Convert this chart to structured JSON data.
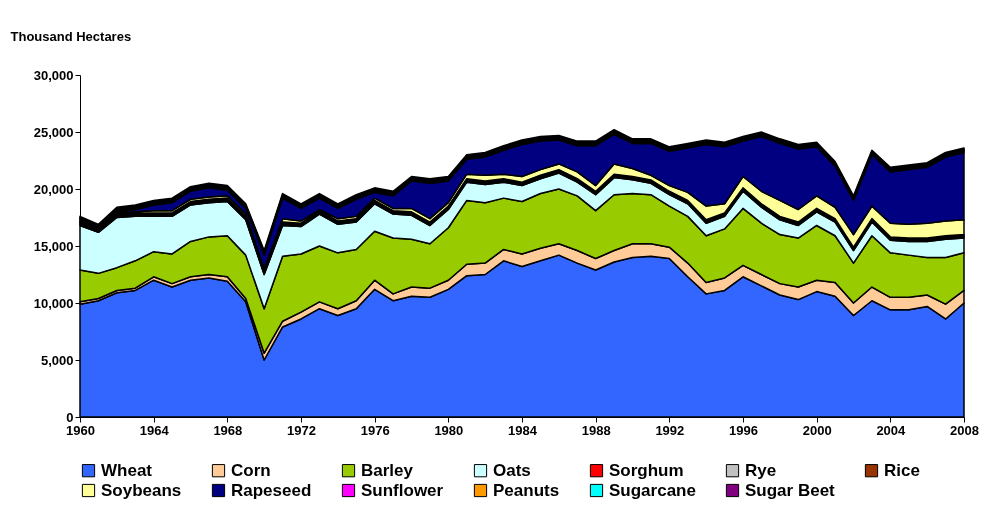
{
  "chart_data": {
    "type": "area",
    "stacked": true,
    "ylabel": "Thousand Hectares",
    "legend": "bottom",
    "grid": false,
    "xlim": [
      1960,
      2008
    ],
    "xticks": [
      1960,
      1964,
      1968,
      1972,
      1976,
      1980,
      1984,
      1988,
      1992,
      1996,
      2000,
      2004,
      2008
    ],
    "ylim": [
      0,
      30000
    ],
    "yticks": [
      {
        "value": 0,
        "label": "0"
      },
      {
        "value": 5000,
        "label": "5,000"
      },
      {
        "value": 10000,
        "label": "10,000"
      },
      {
        "value": 15000,
        "label": "15,000"
      },
      {
        "value": 20000,
        "label": "20,000"
      },
      {
        "value": 25000,
        "label": "25,000"
      },
      {
        "value": 30000,
        "label": "30,000"
      }
    ],
    "x": [
      1960,
      1961,
      1962,
      1963,
      1964,
      1965,
      1966,
      1967,
      1968,
      1969,
      1970,
      1971,
      1972,
      1973,
      1974,
      1975,
      1976,
      1977,
      1978,
      1979,
      1980,
      1981,
      1982,
      1983,
      1984,
      1985,
      1986,
      1987,
      1988,
      1989,
      1990,
      1991,
      1992,
      1993,
      1994,
      1995,
      1996,
      1997,
      1998,
      1999,
      2000,
      2001,
      2002,
      2003,
      2004,
      2005,
      2006,
      2007,
      2008
    ],
    "series": [
      {
        "name": "Wheat",
        "color": "#3366ff",
        "values": [
          9900,
          10200,
          10900,
          11100,
          12000,
          11400,
          12000,
          12200,
          11900,
          10100,
          5000,
          7900,
          8600,
          9500,
          8900,
          9500,
          11200,
          10200,
          10600,
          10500,
          11200,
          12400,
          12500,
          13700,
          13200,
          13700,
          14200,
          13500,
          12900,
          13600,
          14000,
          14100,
          13900,
          12300,
          10800,
          11100,
          12300,
          11500,
          10700,
          10300,
          11000,
          10600,
          8900,
          10200,
          9400,
          9400,
          9700,
          8600,
          10000
        ]
      },
      {
        "name": "Corn",
        "color": "#ffcc99",
        "values": [
          200,
          200,
          200,
          200,
          300,
          300,
          300,
          300,
          400,
          300,
          600,
          500,
          600,
          600,
          600,
          700,
          800,
          600,
          800,
          800,
          800,
          1000,
          1000,
          1000,
          1100,
          1100,
          1000,
          1100,
          1000,
          1000,
          1200,
          1100,
          1000,
          1200,
          1000,
          1100,
          1000,
          1000,
          1000,
          1100,
          1000,
          1200,
          1100,
          1200,
          1100,
          1100,
          1000,
          1300,
          1100
        ]
      },
      {
        "name": "Barley",
        "color": "#99cc00",
        "values": [
          2800,
          2200,
          2000,
          2400,
          2200,
          2600,
          3100,
          3300,
          3600,
          3800,
          3900,
          5700,
          5100,
          4900,
          4900,
          4500,
          4300,
          4900,
          4200,
          3900,
          4600,
          5600,
          5300,
          4500,
          4600,
          4800,
          4800,
          4800,
          4200,
          4900,
          4400,
          4300,
          3600,
          4100,
          4100,
          4300,
          5000,
          4500,
          4300,
          4300,
          4800,
          4100,
          3500,
          4500,
          3900,
          3700,
          3300,
          4100,
          3300
        ]
      },
      {
        "name": "Oats",
        "color": "#ccffff",
        "values": [
          3900,
          3600,
          4400,
          3900,
          3100,
          3300,
          3200,
          3000,
          3000,
          3100,
          3000,
          2700,
          2400,
          2800,
          2500,
          2400,
          2400,
          2100,
          2100,
          1600,
          1600,
          1600,
          1600,
          1400,
          1400,
          1300,
          1400,
          1200,
          1400,
          1500,
          1200,
          1000,
          1000,
          1100,
          1100,
          1100,
          1500,
          1400,
          1300,
          1100,
          1200,
          1200,
          1100,
          1200,
          1100,
          1200,
          1400,
          1600,
          1300
        ]
      },
      {
        "name": "Sorghum",
        "color": "#ff0000",
        "values": [
          100,
          100,
          100,
          100,
          100,
          100,
          100,
          100,
          100,
          100,
          100,
          100,
          100,
          100,
          100,
          100,
          100,
          100,
          100,
          100,
          100,
          100,
          100,
          100,
          100,
          100,
          100,
          100,
          100,
          100,
          100,
          100,
          100,
          100,
          100,
          100,
          100,
          100,
          100,
          100,
          100,
          100,
          100,
          100,
          100,
          100,
          100,
          100,
          100
        ]
      },
      {
        "name": "Rye",
        "color": "#c0c0c0",
        "values": [
          100,
          100,
          100,
          100,
          100,
          100,
          100,
          100,
          100,
          100,
          100,
          100,
          100,
          100,
          100,
          100,
          100,
          100,
          100,
          100,
          100,
          100,
          100,
          100,
          100,
          100,
          100,
          100,
          100,
          100,
          100,
          100,
          100,
          100,
          100,
          100,
          100,
          100,
          100,
          100,
          100,
          100,
          100,
          100,
          100,
          100,
          100,
          100,
          100
        ]
      },
      {
        "name": "Rice",
        "color": "#993300",
        "values": [
          100,
          100,
          100,
          100,
          100,
          100,
          100,
          100,
          100,
          100,
          100,
          100,
          100,
          100,
          100,
          100,
          100,
          100,
          100,
          100,
          100,
          100,
          100,
          100,
          100,
          100,
          100,
          100,
          100,
          100,
          100,
          100,
          100,
          100,
          100,
          100,
          100,
          100,
          100,
          100,
          100,
          100,
          100,
          100,
          100,
          100,
          100,
          100,
          100
        ]
      },
      {
        "name": "Soybeans",
        "color": "#ffff99",
        "values": [
          0,
          0,
          100,
          100,
          200,
          200,
          200,
          200,
          200,
          200,
          200,
          300,
          200,
          100,
          200,
          200,
          200,
          200,
          300,
          300,
          300,
          400,
          500,
          400,
          500,
          500,
          500,
          600,
          500,
          900,
          700,
          400,
          500,
          700,
          1200,
          800,
          1000,
          1100,
          1400,
          1100,
          1100,
          1000,
          1100,
          1100,
          1200,
          1200,
          1300,
          1300,
          1300
        ]
      },
      {
        "name": "Rapeseed",
        "color": "#000080",
        "values": [
          100,
          0,
          100,
          200,
          500,
          700,
          700,
          800,
          500,
          500,
          1200,
          1800,
          1100,
          1000,
          900,
          1500,
          500,
          1100,
          2400,
          3100,
          1900,
          1300,
          1600,
          2100,
          2800,
          2500,
          2100,
          2300,
          3500,
          2600,
          2200,
          2800,
          3000,
          3900,
          5400,
          5000,
          3100,
          4800,
          5000,
          5300,
          4300,
          3600,
          3000,
          4500,
          4500,
          4800,
          4900,
          5600,
          5900
        ]
      },
      {
        "name": "Sunflower",
        "color": "#ff00ff",
        "values": [
          100,
          100,
          100,
          100,
          100,
          100,
          100,
          100,
          100,
          100,
          100,
          100,
          100,
          100,
          100,
          100,
          100,
          100,
          100,
          100,
          100,
          100,
          100,
          100,
          100,
          100,
          100,
          100,
          100,
          100,
          100,
          100,
          100,
          100,
          100,
          100,
          100,
          100,
          100,
          100,
          100,
          100,
          100,
          100,
          100,
          100,
          100,
          100,
          100
        ]
      },
      {
        "name": "Peanuts",
        "color": "#ff9900",
        "values": [
          100,
          100,
          100,
          100,
          100,
          100,
          100,
          100,
          100,
          100,
          100,
          100,
          100,
          100,
          100,
          100,
          100,
          100,
          100,
          100,
          100,
          100,
          100,
          100,
          100,
          100,
          100,
          100,
          100,
          100,
          100,
          100,
          100,
          100,
          100,
          100,
          100,
          100,
          100,
          100,
          100,
          100,
          100,
          100,
          100,
          100,
          100,
          100,
          100
        ]
      },
      {
        "name": "Sugarcane",
        "color": "#00ffff",
        "values": [
          100,
          100,
          100,
          100,
          100,
          100,
          100,
          100,
          100,
          100,
          100,
          100,
          100,
          100,
          100,
          100,
          100,
          100,
          100,
          100,
          100,
          100,
          100,
          100,
          100,
          100,
          100,
          100,
          100,
          100,
          100,
          100,
          100,
          100,
          100,
          100,
          100,
          100,
          100,
          100,
          100,
          100,
          100,
          100,
          100,
          100,
          100,
          100,
          100
        ]
      },
      {
        "name": "Sugar Beet",
        "color": "#800080",
        "values": [
          100,
          100,
          100,
          100,
          100,
          100,
          100,
          100,
          100,
          100,
          100,
          100,
          100,
          100,
          100,
          100,
          100,
          100,
          100,
          100,
          100,
          100,
          100,
          100,
          100,
          100,
          100,
          100,
          100,
          100,
          100,
          100,
          100,
          100,
          100,
          100,
          100,
          100,
          100,
          100,
          100,
          100,
          100,
          100,
          100,
          100,
          100,
          100,
          100
        ]
      }
    ]
  }
}
